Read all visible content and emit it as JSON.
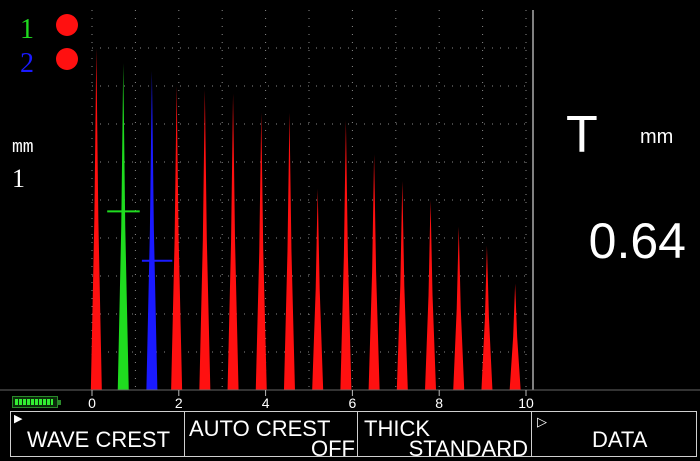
{
  "channels": [
    {
      "label": "1",
      "color": "#1fdc1f",
      "status_color": "#ff1010"
    },
    {
      "label": "2",
      "color": "#1a1aff",
      "status_color": "#ff1010"
    }
  ],
  "scale": {
    "unit": "mm",
    "factor": "1"
  },
  "reading": {
    "label": "T",
    "unit": "mm",
    "value": "0.64"
  },
  "battery": {
    "level": 0.95,
    "color": "#33ee33"
  },
  "softkeys": [
    {
      "label": "WAVE CREST",
      "sub": "",
      "marker": "▶"
    },
    {
      "label": "AUTO CREST",
      "sub": "OFF",
      "marker": ""
    },
    {
      "label": "THICK",
      "sub": "STANDARD",
      "marker": ""
    },
    {
      "label": "DATA",
      "sub": "",
      "marker": "▷"
    }
  ],
  "chart_data": {
    "type": "line",
    "x_ticks": [
      "0",
      "2",
      "4",
      "6",
      "8",
      "10"
    ],
    "xlim": [
      0,
      10
    ],
    "ylim": [
      0,
      1
    ],
    "grid": true,
    "series": [
      {
        "color": "#ff1010",
        "x": [
          0.1,
          1.95,
          2.6,
          3.25,
          3.9,
          4.55,
          5.2,
          5.85,
          6.5,
          7.15,
          7.8,
          8.45,
          9.1,
          9.75
        ],
        "values": [
          0.9,
          0.8,
          0.79,
          0.78,
          0.73,
          0.73,
          0.53,
          0.71,
          0.62,
          0.55,
          0.5,
          0.43,
          0.38,
          0.28
        ]
      },
      {
        "color": "#1fdc1f",
        "x": [
          0.72
        ],
        "values": [
          0.86
        ]
      },
      {
        "color": "#1a1aff",
        "x": [
          1.38
        ],
        "values": [
          0.84
        ]
      }
    ],
    "gates": [
      {
        "color": "#1fdc1f",
        "x": [
          0.35,
          1.1
        ],
        "level": 0.47
      },
      {
        "color": "#1a1aff",
        "x": [
          1.15,
          1.85
        ],
        "level": 0.34
      }
    ]
  }
}
